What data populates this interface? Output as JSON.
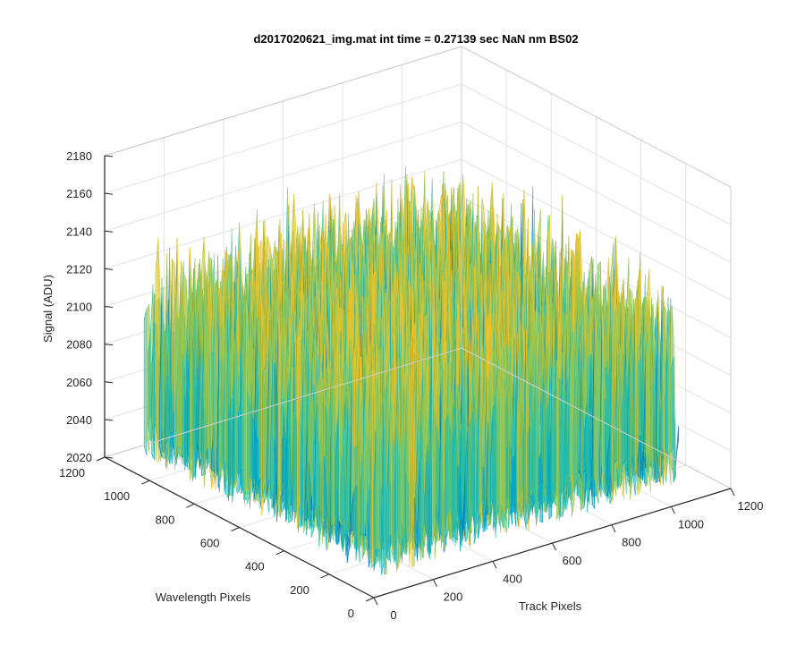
{
  "figure": {
    "title": "d2017020621_img.mat int time = 0.27139 sec  NaN nm BS02"
  },
  "chart_data": {
    "type": "surface",
    "title": "d2017020621_img.mat int time = 0.27139 sec  NaN nm BS02",
    "xlabel": "Track Pixels",
    "ylabel": "Wavelength Pixels",
    "zlabel": "Signal (ADU)",
    "xlim": [
      0,
      1200
    ],
    "ylim": [
      0,
      1200
    ],
    "zlim": [
      2020,
      2180
    ],
    "x_ticks": [
      "0",
      "200",
      "400",
      "600",
      "800",
      "1000",
      "1200"
    ],
    "y_ticks": [
      "0",
      "200",
      "400",
      "600",
      "800",
      "1000",
      "1200"
    ],
    "z_ticks": [
      "2020",
      "2040",
      "2060",
      "2080",
      "2100",
      "2120",
      "2140",
      "2160",
      "2180"
    ],
    "grid": true,
    "surface": {
      "x_range": [
        0,
        1024
      ],
      "y_range": [
        0,
        1024
      ],
      "mean": 2095,
      "noise_peak_to_peak": 130,
      "colormap": [
        "#0072bd",
        "#00a6ca",
        "#2ec0a0",
        "#9cc64c",
        "#edc32a"
      ],
      "approx_values": {
        "x": [
          0,
          256,
          512,
          768,
          1024
        ],
        "y": [
          0,
          256,
          512,
          768,
          1024
        ],
        "z": [
          [
            2100,
            2098,
            2096,
            2094,
            2092
          ],
          [
            2098,
            2097,
            2095,
            2093,
            2091
          ],
          [
            2096,
            2095,
            2094,
            2092,
            2090
          ],
          [
            2094,
            2093,
            2092,
            2091,
            2089
          ],
          [
            2092,
            2091,
            2090,
            2089,
            2088
          ]
        ]
      }
    }
  }
}
